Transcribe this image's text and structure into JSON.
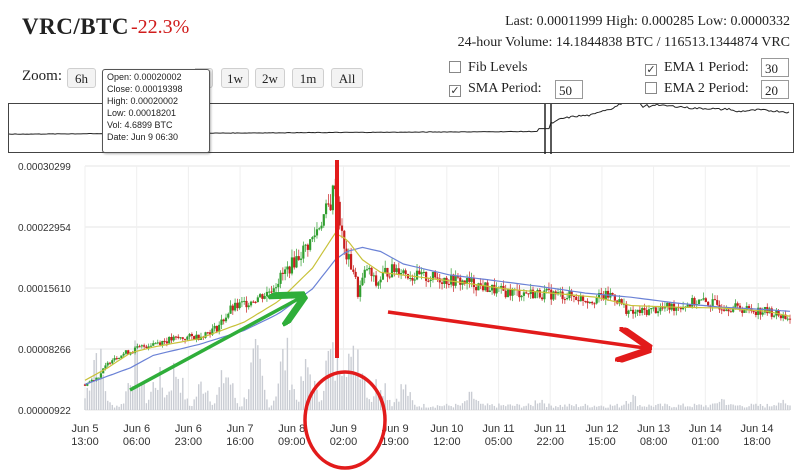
{
  "header": {
    "pair": "VRC/BTC",
    "change": "-22.3%",
    "stats_line1": "Last: 0.00011999  High: 0.000285  Low: 0.0000332",
    "stats_line2": "24-hour Volume: 14.1844838 BTC / 116513.1344874 VRC"
  },
  "zoom": {
    "label": "Zoom:",
    "buttons": [
      "6h",
      "1w",
      "2w",
      "1m",
      "All"
    ]
  },
  "options": {
    "fib_label": "Fib Levels",
    "sma_label": "SMA Period:",
    "sma_value": "50",
    "ema1_label": "EMA 1 Period:",
    "ema1_value": "30",
    "ema2_label": "EMA 2 Period:",
    "ema2_value": "20"
  },
  "tooltip": {
    "open": "Open: 0.00020002",
    "close": "Close: 0.00019398",
    "high": "High: 0.00020002",
    "low": "Low: 0.00018201",
    "vol": "Vol: 4.6899 BTC",
    "date": "Date: Jun 9 06:30"
  },
  "colors": {
    "up": "#2f9e2f",
    "down": "#c81e1e",
    "sma": "#6b82d6",
    "ema": "#c8c23a",
    "volume": "#c9ccd3",
    "annotation_red": "#e21b1b",
    "annotation_green": "#2fae3a"
  },
  "chart_data": {
    "type": "candlestick",
    "y_ticks": [
      "0.00030299",
      "0.00022954",
      "0.00015610",
      "0.00008266",
      "0.00000922"
    ],
    "ylim": [
      9.22e-06,
      0.00030299
    ],
    "x_ticks": [
      {
        "top": "Jun 5",
        "bottom": "13:00"
      },
      {
        "top": "Jun 6",
        "bottom": "06:00"
      },
      {
        "top": "Jun 6",
        "bottom": "23:00"
      },
      {
        "top": "Jun 7",
        "bottom": "16:00"
      },
      {
        "top": "Jun 8",
        "bottom": "09:00"
      },
      {
        "top": "Jun 9",
        "bottom": "02:00"
      },
      {
        "top": "Jun 9",
        "bottom": "19:00"
      },
      {
        "top": "Jun 10",
        "bottom": "12:00"
      },
      {
        "top": "Jun 11",
        "bottom": "05:00"
      },
      {
        "top": "Jun 11",
        "bottom": "22:00"
      },
      {
        "top": "Jun 12",
        "bottom": "15:00"
      },
      {
        "top": "Jun 13",
        "bottom": "08:00"
      },
      {
        "top": "Jun 14",
        "bottom": "01:00"
      },
      {
        "top": "Jun 14",
        "bottom": "18:00"
      }
    ],
    "price_path": [
      [
        0,
        4e-05
      ],
      [
        6,
        5e-05
      ],
      [
        12,
        7.2e-05
      ],
      [
        20,
        8e-05
      ],
      [
        30,
        9e-05
      ],
      [
        40,
        9.5e-05
      ],
      [
        50,
        9.8e-05
      ],
      [
        58,
        0.000108
      ],
      [
        64,
        0.00013
      ],
      [
        72,
        0.00014
      ],
      [
        80,
        0.00015
      ],
      [
        88,
        0.000175
      ],
      [
        94,
        0.000195
      ],
      [
        100,
        0.000215
      ],
      [
        104,
        0.000238
      ],
      [
        108,
        0.000258
      ],
      [
        110,
        0.000285
      ],
      [
        112,
        0.000238
      ],
      [
        114,
        0.0002
      ],
      [
        118,
        0.000178
      ],
      [
        120,
        0.00015
      ],
      [
        124,
        0.00018
      ],
      [
        128,
        0.00016
      ],
      [
        132,
        0.000175
      ],
      [
        138,
        0.00018
      ],
      [
        144,
        0.00017
      ],
      [
        155,
        0.000168
      ],
      [
        170,
        0.000162
      ],
      [
        182,
        0.000152
      ],
      [
        195,
        0.00015
      ],
      [
        210,
        0.000148
      ],
      [
        222,
        0.000142
      ],
      [
        232,
        0.000148
      ],
      [
        240,
        0.000125
      ],
      [
        250,
        0.00013
      ],
      [
        262,
        0.000135
      ],
      [
        270,
        0.00014
      ],
      [
        280,
        0.000135
      ],
      [
        292,
        0.00013
      ],
      [
        300,
        0.000128
      ],
      [
        310,
        0.00012
      ]
    ],
    "sma_path": [
      [
        0,
        4e-05
      ],
      [
        10,
        5e-05
      ],
      [
        20,
        6e-05
      ],
      [
        30,
        7.5e-05
      ],
      [
        50,
        8.8e-05
      ],
      [
        70,
        0.000105
      ],
      [
        85,
        0.000125
      ],
      [
        100,
        0.000155
      ],
      [
        110,
        0.00019
      ],
      [
        115,
        0.0002
      ],
      [
        122,
        0.000205
      ],
      [
        130,
        0.0002
      ],
      [
        140,
        0.000185
      ],
      [
        160,
        0.000172
      ],
      [
        180,
        0.000165
      ],
      [
        200,
        0.000158
      ],
      [
        220,
        0.00015
      ],
      [
        240,
        0.000145
      ],
      [
        260,
        0.000138
      ],
      [
        280,
        0.000133
      ],
      [
        300,
        0.00013
      ],
      [
        310,
        0.000128
      ]
    ],
    "ema_path": [
      [
        0,
        4.5e-05
      ],
      [
        10,
        6e-05
      ],
      [
        20,
        7.8e-05
      ],
      [
        30,
        8.5e-05
      ],
      [
        50,
        9.5e-05
      ],
      [
        70,
        0.000115
      ],
      [
        85,
        0.00014
      ],
      [
        100,
        0.00018
      ],
      [
        110,
        0.000222
      ],
      [
        115,
        0.000215
      ],
      [
        122,
        0.00019
      ],
      [
        130,
        0.000175
      ],
      [
        145,
        0.00017
      ],
      [
        165,
        0.000163
      ],
      [
        185,
        0.000155
      ],
      [
        205,
        0.00015
      ],
      [
        225,
        0.000145
      ],
      [
        240,
        0.000135
      ],
      [
        260,
        0.000133
      ],
      [
        280,
        0.000132
      ],
      [
        300,
        0.000128
      ],
      [
        310,
        0.000122
      ]
    ],
    "volume_peaks": [
      [
        5,
        0.65
      ],
      [
        22,
        0.55
      ],
      [
        32,
        0.35
      ],
      [
        40,
        0.45
      ],
      [
        52,
        0.3
      ],
      [
        62,
        0.4
      ],
      [
        75,
        0.55
      ],
      [
        88,
        0.6
      ],
      [
        98,
        0.45
      ],
      [
        108,
        0.6
      ],
      [
        114,
        0.8
      ],
      [
        120,
        0.7
      ],
      [
        130,
        0.35
      ],
      [
        140,
        0.25
      ],
      [
        170,
        0.15
      ],
      [
        200,
        0.12
      ],
      [
        240,
        0.15
      ],
      [
        280,
        0.12
      ],
      [
        305,
        0.1
      ]
    ],
    "num_candles": 311
  }
}
